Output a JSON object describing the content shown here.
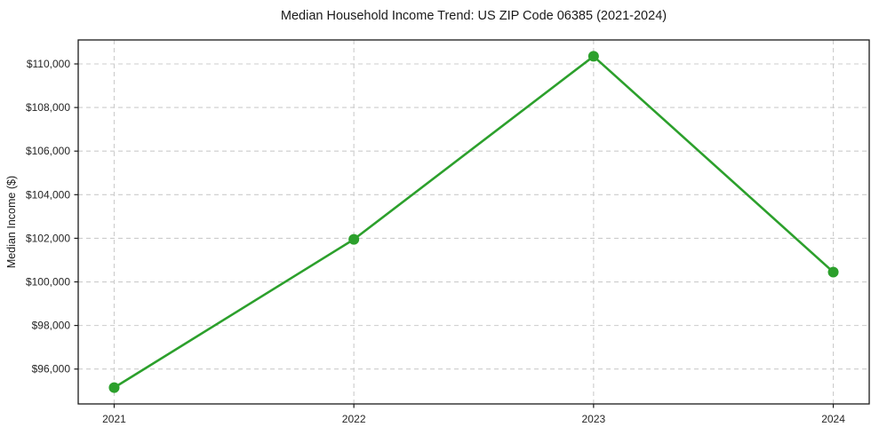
{
  "chart_data": {
    "type": "line",
    "title": "Median Household Income Trend: US ZIP Code 06385 (2021-2024)",
    "xlabel": "",
    "ylabel": "Median Income ($)",
    "x": [
      2021,
      2022,
      2023,
      2024
    ],
    "series": [
      {
        "name": "median-household-income",
        "values": [
          95150,
          101950,
          110350,
          100450
        ],
        "color": "#2ca02c",
        "marker": "circle"
      }
    ],
    "xlim": [
      2020.85,
      2024.15
    ],
    "ylim": [
      94400,
      111100
    ],
    "xticks": [
      {
        "value": 2021,
        "label": "2021"
      },
      {
        "value": 2022,
        "label": "2022"
      },
      {
        "value": 2023,
        "label": "2023"
      },
      {
        "value": 2024,
        "label": "2024"
      }
    ],
    "yticks": [
      {
        "value": 96000,
        "label": "$96,000"
      },
      {
        "value": 98000,
        "label": "$98,000"
      },
      {
        "value": 100000,
        "label": "$100,000"
      },
      {
        "value": 102000,
        "label": "$102,000"
      },
      {
        "value": 104000,
        "label": "$104,000"
      },
      {
        "value": 106000,
        "label": "$106,000"
      },
      {
        "value": 108000,
        "label": "$108,000"
      },
      {
        "value": 110000,
        "label": "$110,000"
      }
    ],
    "grid": true,
    "grid_style": "dashed",
    "legend": "none",
    "colors": {
      "line": "#2ca02c",
      "grid": "#cccccc",
      "spine": "#1a1a1a",
      "text": "#1a1a1a",
      "background": "#ffffff"
    }
  }
}
